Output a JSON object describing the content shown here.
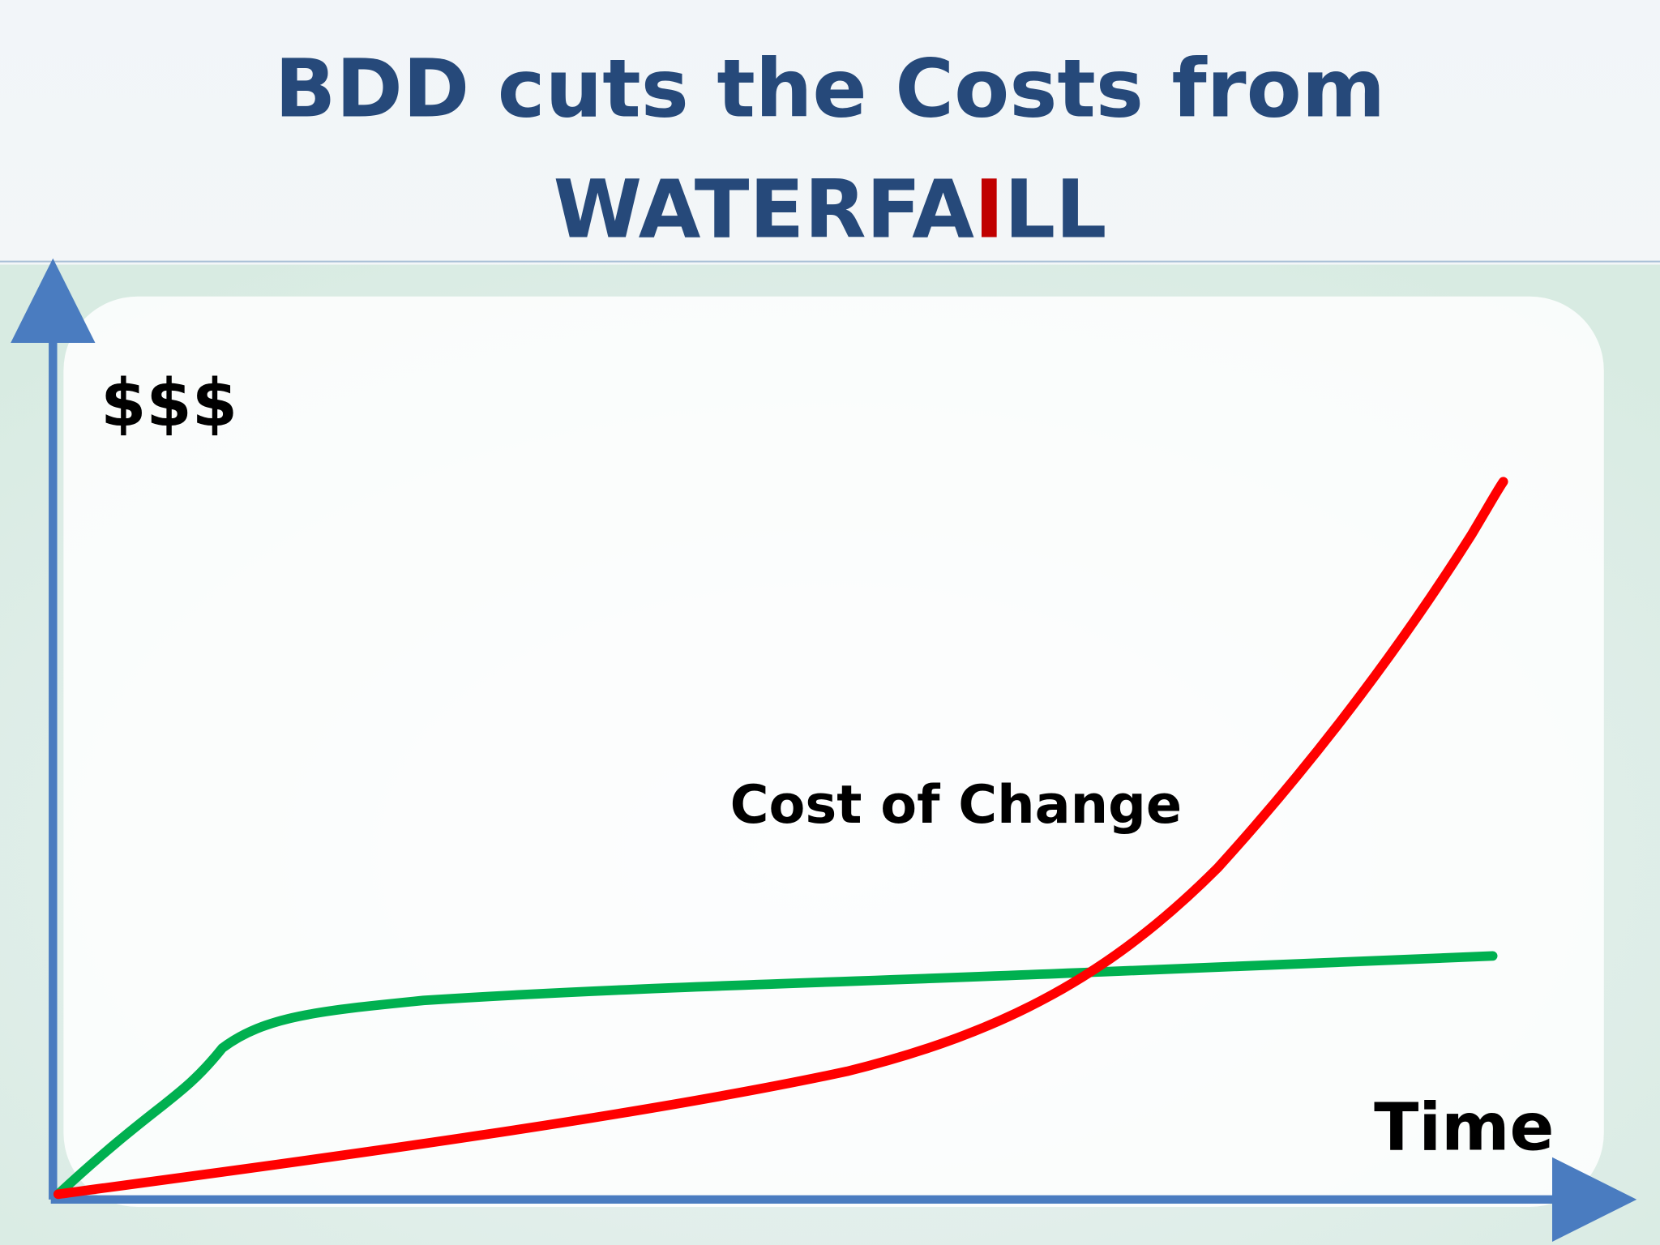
{
  "title": {
    "line1": "BDD cuts the Costs from",
    "line2": [
      "WATERFA",
      "I",
      "LL"
    ]
  },
  "axis_labels": {
    "y": "$$$",
    "x": "Time"
  },
  "annotation": "Cost of Change"
}
